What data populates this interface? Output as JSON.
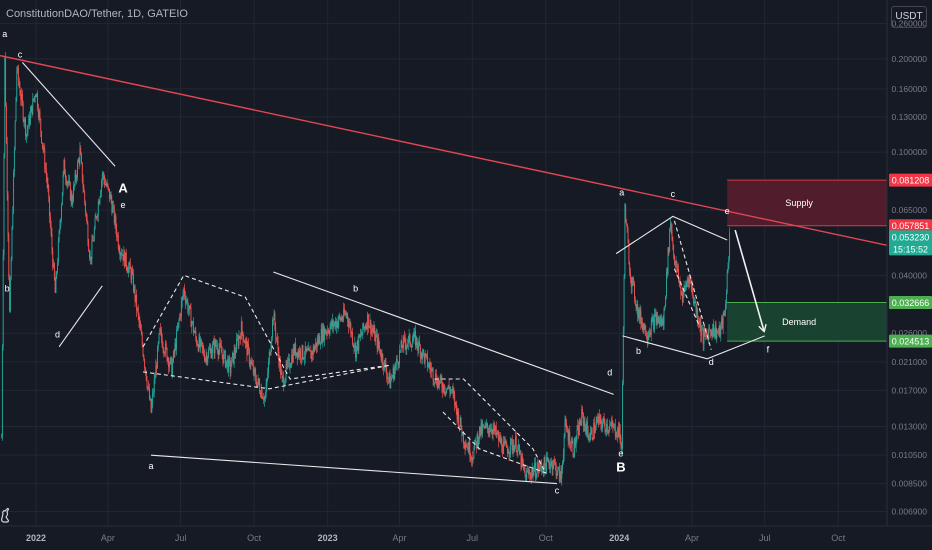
{
  "header": {
    "title": "ConstitutionDAO/Tether, 1D, GATEIO",
    "currency": "USDT"
  },
  "chart_data": {
    "type": "candlestick",
    "title": "ConstitutionDAO/Tether, 1D, GATEIO",
    "scale": "log",
    "grid": true,
    "xlim": [
      "2021-11-17",
      "2024-12-01"
    ],
    "ylim": [
      0.0062,
      0.31
    ],
    "x_ticks": [
      {
        "date": "2022-01-01",
        "label": "2022",
        "bold": true
      },
      {
        "date": "2022-04-01",
        "label": "Apr"
      },
      {
        "date": "2022-07-01",
        "label": "Jul"
      },
      {
        "date": "2022-10-01",
        "label": "Oct"
      },
      {
        "date": "2023-01-01",
        "label": "2023",
        "bold": true
      },
      {
        "date": "2023-04-01",
        "label": "Apr"
      },
      {
        "date": "2023-07-01",
        "label": "Jul"
      },
      {
        "date": "2023-10-01",
        "label": "Oct"
      },
      {
        "date": "2024-01-01",
        "label": "2024",
        "bold": true
      },
      {
        "date": "2024-04-01",
        "label": "Apr"
      },
      {
        "date": "2024-07-01",
        "label": "Jul"
      },
      {
        "date": "2024-10-01",
        "label": "Oct"
      }
    ],
    "y_ticks": [
      "0.260000",
      "0.200000",
      "0.160000",
      "0.130000",
      "0.100000",
      "0.065000",
      "0.040000",
      "0.026000",
      "0.021000",
      "0.017000",
      "0.013000",
      "0.010500",
      "0.008500",
      "0.006900"
    ],
    "price_tags": [
      {
        "value": 0.081208,
        "label": "0.081208",
        "color": "#f23645"
      },
      {
        "value": 0.057851,
        "label": "0.057851",
        "color": "#f23645"
      },
      {
        "value": 0.05323,
        "label": "0.053230",
        "sub": "15:15:52",
        "color": "#22ab94"
      },
      {
        "value": 0.032666,
        "label": "0.032666",
        "color": "#4caf50"
      },
      {
        "value": 0.024513,
        "label": "0.024513",
        "color": "#4caf50"
      }
    ],
    "series": [
      {
        "name": "ConstitutionDAO/Tether",
        "type": "candlestick",
        "up_color": "#26a69a",
        "down_color": "#ef5350",
        "path": [
          [
            "2021-11-19",
            0.012
          ],
          [
            "2021-11-23",
            0.2
          ],
          [
            "2021-11-29",
            0.03
          ],
          [
            "2021-12-08",
            0.185
          ],
          [
            "2021-12-20",
            0.115
          ],
          [
            "2022-01-01",
            0.16
          ],
          [
            "2022-01-15",
            0.08
          ],
          [
            "2022-01-25",
            0.035
          ],
          [
            "2022-02-05",
            0.09
          ],
          [
            "2022-02-15",
            0.07
          ],
          [
            "2022-02-25",
            0.1
          ],
          [
            "2022-03-10",
            0.045
          ],
          [
            "2022-03-25",
            0.085
          ],
          [
            "2022-04-05",
            0.07
          ],
          [
            "2022-04-15",
            0.05
          ],
          [
            "2022-05-01",
            0.04
          ],
          [
            "2022-05-15",
            0.023
          ],
          [
            "2022-05-25",
            0.0145
          ],
          [
            "2022-06-05",
            0.026
          ],
          [
            "2022-06-20",
            0.02
          ],
          [
            "2022-07-05",
            0.036
          ],
          [
            "2022-07-20",
            0.025
          ],
          [
            "2022-08-01",
            0.022
          ],
          [
            "2022-08-15",
            0.024
          ],
          [
            "2022-09-01",
            0.02
          ],
          [
            "2022-09-15",
            0.027
          ],
          [
            "2022-10-01",
            0.019
          ],
          [
            "2022-10-15",
            0.016
          ],
          [
            "2022-10-25",
            0.03
          ],
          [
            "2022-11-05",
            0.018
          ],
          [
            "2022-11-20",
            0.023
          ],
          [
            "2022-12-10",
            0.022
          ],
          [
            "2022-12-25",
            0.026
          ],
          [
            "2023-01-10",
            0.028
          ],
          [
            "2023-01-25",
            0.03
          ],
          [
            "2023-02-05",
            0.023
          ],
          [
            "2023-02-20",
            0.029
          ],
          [
            "2023-03-05",
            0.024
          ],
          [
            "2023-03-20",
            0.018
          ],
          [
            "2023-04-05",
            0.024
          ],
          [
            "2023-04-20",
            0.025
          ],
          [
            "2023-05-05",
            0.021
          ],
          [
            "2023-05-20",
            0.018
          ],
          [
            "2023-06-05",
            0.017
          ],
          [
            "2023-06-20",
            0.012
          ],
          [
            "2023-07-01",
            0.0105
          ],
          [
            "2023-07-10",
            0.0125
          ],
          [
            "2023-07-25",
            0.013
          ],
          [
            "2023-08-10",
            0.011
          ],
          [
            "2023-08-25",
            0.0115
          ],
          [
            "2023-09-05",
            0.009
          ],
          [
            "2023-09-20",
            0.0095
          ],
          [
            "2023-10-01",
            0.0098
          ],
          [
            "2023-10-10",
            0.01
          ],
          [
            "2023-10-20",
            0.0088
          ],
          [
            "2023-10-25",
            0.013
          ],
          [
            "2023-11-05",
            0.011
          ],
          [
            "2023-11-15",
            0.014
          ],
          [
            "2023-11-25",
            0.012
          ],
          [
            "2023-12-05",
            0.0135
          ],
          [
            "2023-12-20",
            0.013
          ],
          [
            "2024-01-01",
            0.0125
          ],
          [
            "2024-01-04",
            0.011
          ],
          [
            "2024-01-08",
            0.065
          ],
          [
            "2024-01-15",
            0.04
          ],
          [
            "2024-01-25",
            0.03
          ],
          [
            "2024-02-05",
            0.026
          ],
          [
            "2024-02-15",
            0.029
          ],
          [
            "2024-02-25",
            0.028
          ],
          [
            "2024-03-05",
            0.06
          ],
          [
            "2024-03-10",
            0.045
          ],
          [
            "2024-03-20",
            0.034
          ],
          [
            "2024-03-28",
            0.04
          ],
          [
            "2024-04-05",
            0.032
          ],
          [
            "2024-04-15",
            0.025
          ],
          [
            "2024-04-25",
            0.027
          ],
          [
            "2024-05-05",
            0.026
          ],
          [
            "2024-05-12",
            0.03
          ],
          [
            "2024-05-18",
            0.053
          ]
        ]
      }
    ],
    "trendline": {
      "color": "#e14653",
      "from": [
        "2021-11-17",
        0.205
      ],
      "to": [
        "2024-12-01",
        0.05
      ]
    },
    "zones": [
      {
        "label": "Supply",
        "from": "2024-05-15",
        "to": "2024-12-01",
        "low": 0.057851,
        "high": 0.081208,
        "fill": "#5c1f2f"
      },
      {
        "label": "Demand",
        "from": "2024-05-15",
        "to": "2024-12-01",
        "low": 0.024513,
        "high": 0.032666,
        "fill": "#1b4a33"
      }
    ],
    "patterns": [
      {
        "style": "solid",
        "points": [
          [
            "2021-12-15",
            0.195
          ],
          [
            "2022-04-10",
            0.09
          ]
        ]
      },
      {
        "style": "solid",
        "points": [
          [
            "2022-01-30",
            0.0235
          ],
          [
            "2022-03-25",
            0.037
          ]
        ]
      },
      {
        "style": "dashed",
        "points": [
          [
            "2022-05-15",
            0.0235
          ],
          [
            "2022-07-05",
            0.04
          ],
          [
            "2022-09-20",
            0.034
          ],
          [
            "2022-11-15",
            0.0185
          ],
          [
            "2023-03-20",
            0.0205
          ],
          [
            "2022-10-20",
            0.0172
          ],
          [
            "2022-05-15",
            0.0195
          ]
        ]
      },
      {
        "style": "solid",
        "points": [
          [
            "2022-10-25",
            0.041
          ],
          [
            "2023-12-25",
            0.0165
          ]
        ]
      },
      {
        "style": "solid",
        "points": [
          [
            "2022-05-25",
            0.0105
          ],
          [
            "2023-10-15",
            0.0085
          ]
        ]
      },
      {
        "style": "dashed",
        "points": [
          [
            "2023-05-15",
            0.0185
          ],
          [
            "2023-06-20",
            0.0185
          ],
          [
            "2023-09-15",
            0.011
          ],
          [
            "2023-10-01",
            0.0092
          ],
          [
            "2023-07-10",
            0.011
          ],
          [
            "2023-05-25",
            0.0145
          ]
        ]
      },
      {
        "style": "solid",
        "points": [
          [
            "2023-12-28",
            0.047
          ],
          [
            "2024-03-08",
            0.062
          ],
          [
            "2024-05-15",
            0.052
          ]
        ]
      },
      {
        "style": "solid",
        "points": [
          [
            "2024-01-05",
            0.0255
          ],
          [
            "2024-04-20",
            0.0215
          ],
          [
            "2024-07-01",
            0.0255
          ]
        ]
      },
      {
        "style": "dashed",
        "points": [
          [
            "2024-03-10",
            0.06
          ],
          [
            "2024-04-25",
            0.023
          ]
        ]
      },
      {
        "style": "dashed",
        "points": [
          [
            "2024-03-10",
            0.042
          ],
          [
            "2024-04-10",
            0.0275
          ]
        ]
      },
      {
        "style": "arrow",
        "color": "#f0f0f0",
        "points": [
          [
            "2024-05-25",
            0.056
          ],
          [
            "2024-06-30",
            0.0265
          ]
        ]
      }
    ],
    "annotations": [
      {
        "text": "a",
        "at": [
          "2021-11-23",
          0.235
        ]
      },
      {
        "text": "c",
        "at": [
          "2021-12-12",
          0.202
        ]
      },
      {
        "text": "b",
        "at": [
          "2021-11-26",
          0.0355
        ]
      },
      {
        "text": "d",
        "at": [
          "2022-01-28",
          0.0252
        ]
      },
      {
        "text": "A",
        "at": [
          "2022-04-20",
          0.074
        ],
        "big": true
      },
      {
        "text": "e",
        "at": [
          "2022-04-20",
          0.066
        ]
      },
      {
        "text": "a",
        "at": [
          "2022-05-25",
          0.00948
        ]
      },
      {
        "text": "b",
        "at": [
          "2023-02-05",
          0.0355
        ]
      },
      {
        "text": "c",
        "at": [
          "2023-10-15",
          0.0079
        ]
      },
      {
        "text": "d",
        "at": [
          "2023-12-20",
          0.019
        ]
      },
      {
        "text": "e",
        "at": [
          "2024-01-03",
          0.0104
        ]
      },
      {
        "text": "B",
        "at": [
          "2024-01-03",
          0.0093
        ],
        "big": true
      },
      {
        "text": "a",
        "at": [
          "2024-01-04",
          0.0725
        ]
      },
      {
        "text": "c",
        "at": [
          "2024-03-08",
          0.0715
        ]
      },
      {
        "text": "b",
        "at": [
          "2024-01-25",
          0.0223
        ]
      },
      {
        "text": "d",
        "at": [
          "2024-04-25",
          0.0205
        ]
      },
      {
        "text": "e",
        "at": [
          "2024-05-15",
          0.0632
        ]
      },
      {
        "text": "f",
        "at": [
          "2024-07-05",
          0.0225
        ]
      }
    ]
  }
}
